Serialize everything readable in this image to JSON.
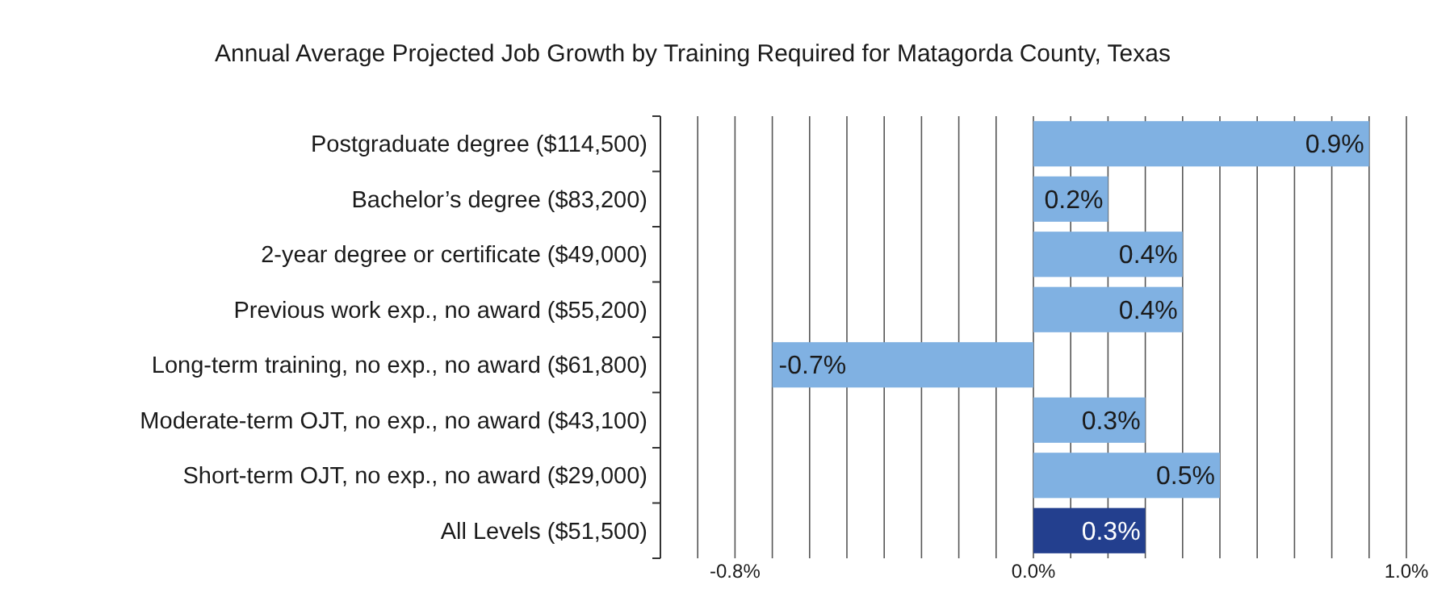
{
  "chart_data": {
    "type": "bar",
    "orientation": "horizontal",
    "title": "Annual Average Projected Job Growth by Training Required for Matagorda County, Texas",
    "categories": [
      "Postgraduate degree ($114,500)",
      "Bachelor’s degree ($83,200)",
      "2-year degree or certificate ($49,000)",
      "Previous work exp., no award ($55,200)",
      "Long-term training, no exp., no award ($61,800)",
      "Moderate-term OJT, no exp., no award ($43,100)",
      "Short-term OJT, no exp., no award ($29,000)",
      "All Levels ($51,500)"
    ],
    "values": [
      0.9,
      0.2,
      0.4,
      0.4,
      -0.7,
      0.3,
      0.5,
      0.3
    ],
    "value_labels": [
      "0.9%",
      "0.2%",
      "0.4%",
      "0.4%",
      "-0.7%",
      "0.3%",
      "0.5%",
      "0.3%"
    ],
    "colors": [
      "#80b1e2",
      "#80b1e2",
      "#80b1e2",
      "#80b1e2",
      "#80b1e2",
      "#80b1e2",
      "#80b1e2",
      "#233f8e"
    ],
    "xlim": [
      -1.0,
      1.0
    ],
    "xticks": [
      {
        "value": -0.9,
        "label": null
      },
      {
        "value": -0.8,
        "label": "-0.8%"
      },
      {
        "value": -0.7,
        "label": null
      },
      {
        "value": -0.6,
        "label": null
      },
      {
        "value": -0.5,
        "label": null
      },
      {
        "value": -0.4,
        "label": null
      },
      {
        "value": -0.3,
        "label": null
      },
      {
        "value": -0.2,
        "label": null
      },
      {
        "value": -0.1,
        "label": null
      },
      {
        "value": 0.0,
        "label": "0.0%"
      },
      {
        "value": 0.1,
        "label": null
      },
      {
        "value": 0.2,
        "label": null
      },
      {
        "value": 0.3,
        "label": null
      },
      {
        "value": 0.4,
        "label": null
      },
      {
        "value": 0.5,
        "label": null
      },
      {
        "value": 0.6,
        "label": null
      },
      {
        "value": 0.7,
        "label": null
      },
      {
        "value": 0.8,
        "label": null
      },
      {
        "value": 0.9,
        "label": null
      },
      {
        "value": 1.0,
        "label": "1.0%"
      }
    ],
    "grid": "x"
  }
}
